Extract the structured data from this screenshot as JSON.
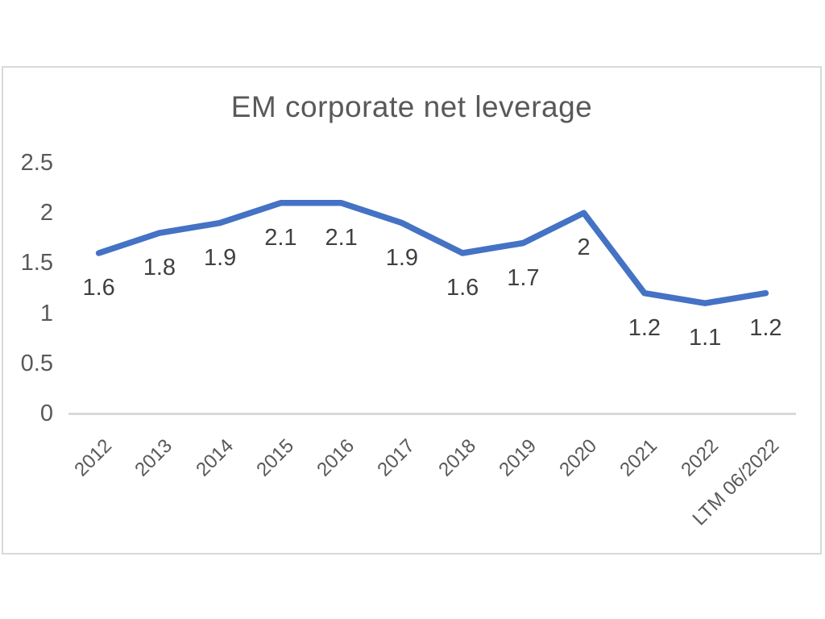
{
  "chart_data": {
    "type": "line",
    "title": "EM corporate net leverage",
    "categories": [
      "2012",
      "2013",
      "2014",
      "2015",
      "2016",
      "2017",
      "2018",
      "2019",
      "2020",
      "2021",
      "2022",
      "LTM 06/2022"
    ],
    "values": [
      1.6,
      1.8,
      1.9,
      2.1,
      2.1,
      1.9,
      1.6,
      1.7,
      2,
      1.2,
      1.1,
      1.2
    ],
    "data_labels": [
      "1.6",
      "1.8",
      "1.9",
      "2.1",
      "2.1",
      "1.9",
      "1.6",
      "1.7",
      "2",
      "1.2",
      "1.1",
      "1.2"
    ],
    "xlabel": "",
    "ylabel": "",
    "y_axis": {
      "min": 0,
      "max": 2.5,
      "tick_values": [
        0,
        0.5,
        1,
        1.5,
        2,
        2.5
      ],
      "tick_labels": [
        "0",
        "0.5",
        "1",
        "1.5",
        "2",
        "2.5"
      ]
    },
    "legend": "none",
    "grid": "off",
    "data_label_position": "below",
    "colors": {
      "series_line": "#4472c4",
      "axis_line": "#d9d9d9",
      "chart_border": "#d9d9d9",
      "title_text": "#595959",
      "axis_text": "#595959",
      "data_label_text": "#404040",
      "background": "#ffffff"
    }
  }
}
